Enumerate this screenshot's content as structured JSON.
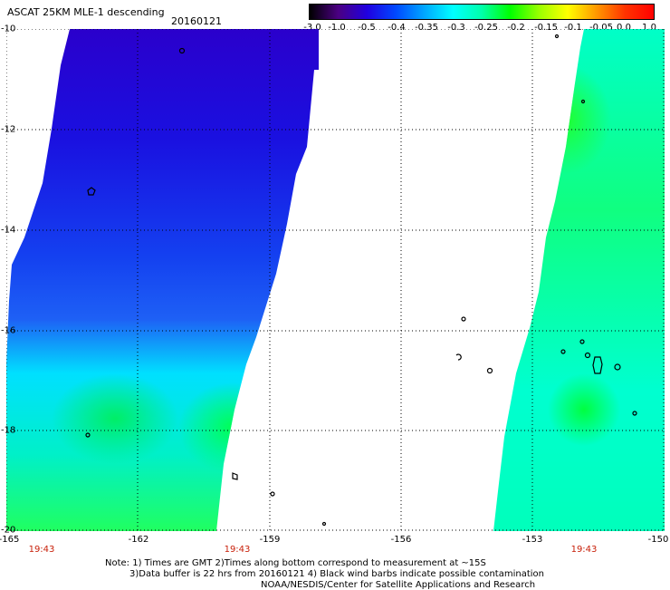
{
  "header": {
    "title": "ASCAT 25KM MLE-1 descending",
    "date": "20160121"
  },
  "colorbar": {
    "labels": [
      "-3.0",
      "-1.0",
      "-0.5",
      "-0.4",
      "-0.35",
      "-0.3",
      "-0.25",
      "-0.2",
      "-0.15",
      "-0.1",
      "-0.05",
      "0.0",
      "1.0"
    ],
    "colors": [
      "#000000",
      "#4b0082",
      "#2000e0",
      "#0048ff",
      "#00a6ff",
      "#00ffff",
      "#00ffaa",
      "#00ff00",
      "#9aff00",
      "#ffff00",
      "#ff9900",
      "#ff3300",
      "#ff0000"
    ]
  },
  "axes": {
    "lat_labels": [
      "-10",
      "-12",
      "-14",
      "-16",
      "-18",
      "-20"
    ],
    "lon_labels": [
      "-165",
      "-162",
      "-159",
      "-156",
      "-153",
      "-150"
    ],
    "time_labels": [
      "19:43",
      "19:43",
      "19:43"
    ]
  },
  "notes": {
    "line1": "Note: 1) Times are GMT 2)Times along bottom correspond to measurement at ~15S",
    "line2": "3)Data buffer is 22 hrs from 20160121 4) Black wind barbs indicate possible contamination",
    "line3": "NOAA/NESDIS/Center for Satellite Applications and Research"
  }
}
